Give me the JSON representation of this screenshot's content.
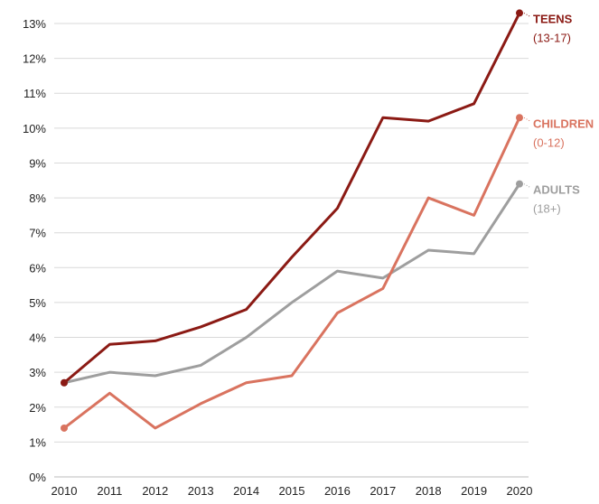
{
  "chart_data": {
    "type": "line",
    "title": "",
    "xlabel": "",
    "ylabel": "",
    "x": [
      "2010",
      "2011",
      "2012",
      "2013",
      "2014",
      "2015",
      "2016",
      "2017",
      "2018",
      "2019",
      "2020"
    ],
    "ylim": [
      0,
      13
    ],
    "yticks": [
      "0%",
      "1%",
      "2%",
      "3%",
      "4%",
      "5%",
      "6%",
      "7%",
      "8%",
      "9%",
      "10%",
      "11%",
      "12%",
      "13%"
    ],
    "grid": true,
    "series": [
      {
        "name": "ADULTS",
        "sublabel": "(18+)",
        "color": "#9e9e9e",
        "values": [
          2.7,
          3.0,
          2.9,
          3.2,
          4.0,
          5.0,
          5.9,
          5.7,
          6.5,
          6.4,
          8.4
        ]
      },
      {
        "name": "CHILDREN",
        "sublabel": "(0-12)",
        "color": "#d9735f",
        "values": [
          1.4,
          2.4,
          1.4,
          2.1,
          2.7,
          2.9,
          4.7,
          5.4,
          8.0,
          7.5,
          10.3
        ]
      },
      {
        "name": "TEENS",
        "sublabel": "(13-17)",
        "color": "#8b1a14",
        "values": [
          2.7,
          3.8,
          3.9,
          4.3,
          4.8,
          6.3,
          7.7,
          10.3,
          10.2,
          10.7,
          13.3
        ]
      }
    ]
  }
}
